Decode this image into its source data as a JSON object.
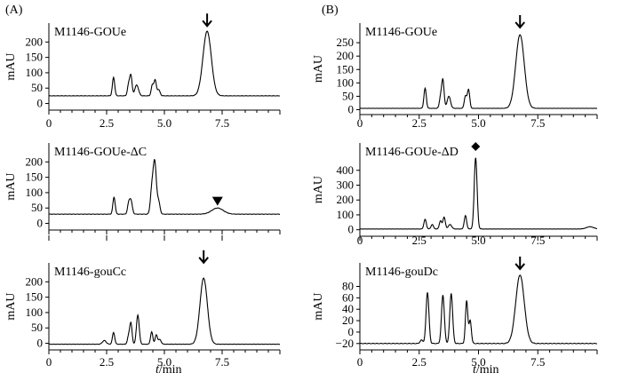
{
  "panel_labels": [
    "(A)",
    "(B)"
  ],
  "x_axis_title": "t/min",
  "chart_data": [
    {
      "type": "line",
      "panel": "A",
      "title": "M1146-GOUe",
      "ylabel": "mAU",
      "xlim": [
        0,
        10
      ],
      "ylim": [
        -10,
        250
      ],
      "ytick_values": [
        0,
        50,
        100,
        150,
        200
      ],
      "xticks": [
        "0",
        "2.5",
        "5.0",
        "7.5"
      ],
      "ytick_labels": [
        "0",
        "50",
        "100",
        "150",
        "200"
      ],
      "baseline": 25,
      "peaks": [
        [
          2.8,
          60,
          0.05
        ],
        [
          3.45,
          35,
          0.05
        ],
        [
          3.55,
          65,
          0.05
        ],
        [
          3.8,
          35,
          0.08
        ],
        [
          4.48,
          35,
          0.05
        ],
        [
          4.6,
          50,
          0.05
        ],
        [
          4.75,
          20,
          0.06
        ],
        [
          6.85,
          210,
          0.18
        ]
      ],
      "marker": {
        "type": "arrow",
        "x": 6.85,
        "y": 255
      }
    },
    {
      "type": "line",
      "panel": "A",
      "title": "M1146-GOUe-ΔC",
      "ylabel": "mAU",
      "xlim": [
        0,
        10
      ],
      "ylim": [
        -10,
        250
      ],
      "ytick_values": [
        0,
        50,
        100,
        150,
        200
      ],
      "xticks": [
        "0",
        "2.5",
        "5.0",
        "7.5"
      ],
      "ytick_labels": [
        "0",
        "50",
        "100",
        "150",
        "200"
      ],
      "baseline": 30,
      "peaks": [
        [
          2.82,
          55,
          0.05
        ],
        [
          3.45,
          30,
          0.05
        ],
        [
          3.55,
          45,
          0.06
        ],
        [
          4.45,
          70,
          0.06
        ],
        [
          4.58,
          170,
          0.07
        ],
        [
          4.75,
          40,
          0.06
        ],
        [
          7.3,
          20,
          0.25
        ]
      ],
      "marker": {
        "type": "triangle",
        "x": 7.3,
        "y": 72
      }
    },
    {
      "type": "line",
      "panel": "A",
      "title": "M1146-gouCc",
      "ylabel": "mAU",
      "xlim": [
        0,
        10
      ],
      "ylim": [
        -10,
        250
      ],
      "ytick_values": [
        0,
        50,
        100,
        150,
        200
      ],
      "xticks": [
        "0",
        "2.5",
        "5.0",
        "7.5"
      ],
      "ytick_labels": [
        "0",
        "50",
        "100",
        "150",
        "200"
      ],
      "baseline": -3,
      "peaks": [
        [
          2.4,
          12,
          0.08
        ],
        [
          2.8,
          38,
          0.05
        ],
        [
          3.45,
          25,
          0.05
        ],
        [
          3.55,
          68,
          0.05
        ],
        [
          3.85,
          95,
          0.06
        ],
        [
          4.45,
          40,
          0.05
        ],
        [
          4.65,
          30,
          0.05
        ],
        [
          4.8,
          15,
          0.06
        ],
        [
          6.7,
          215,
          0.16
        ]
      ],
      "marker": {
        "type": "arrow",
        "x": 6.7,
        "y": 265
      }
    },
    {
      "type": "line",
      "panel": "B",
      "title": "M1146-GOUe",
      "ylabel": "mAU",
      "xlim": [
        0,
        10
      ],
      "ylim": [
        -5,
        310
      ],
      "ytick_values": [
        0,
        50,
        100,
        150,
        200,
        250
      ],
      "xticks": [
        "0",
        "2.5",
        "5.0",
        "7.5"
      ],
      "ytick_labels": [
        "0",
        "50",
        "100",
        "150",
        "200",
        "250"
      ],
      "baseline": 5,
      "peaks": [
        [
          2.75,
          75,
          0.05
        ],
        [
          3.4,
          40,
          0.05
        ],
        [
          3.5,
          105,
          0.05
        ],
        [
          3.75,
          45,
          0.07
        ],
        [
          4.45,
          45,
          0.05
        ],
        [
          4.58,
          70,
          0.05
        ],
        [
          6.75,
          275,
          0.18
        ]
      ],
      "marker": {
        "type": "arrow",
        "x": 6.75,
        "y": 310
      }
    },
    {
      "type": "line",
      "panel": "B",
      "title": "M1146-GOUe-ΔD",
      "ylabel": "mAU",
      "xlim": [
        0,
        10
      ],
      "ylim": [
        -20,
        560
      ],
      "ytick_values": [
        0,
        100,
        200,
        300,
        400
      ],
      "xticks": [
        "0",
        "2.5",
        "5.0",
        "7.5"
      ],
      "ytick_labels": [
        "0",
        "100",
        "200",
        "300",
        "400"
      ],
      "baseline": 5,
      "peaks": [
        [
          2.75,
          65,
          0.05
        ],
        [
          3.05,
          30,
          0.05
        ],
        [
          3.4,
          55,
          0.05
        ],
        [
          3.55,
          80,
          0.05
        ],
        [
          3.8,
          30,
          0.07
        ],
        [
          4.45,
          90,
          0.05
        ],
        [
          4.88,
          480,
          0.06
        ],
        [
          9.7,
          15,
          0.15
        ]
      ],
      "marker": {
        "type": "diamond",
        "x": 4.88,
        "y": 560
      }
    },
    {
      "type": "line",
      "panel": "B",
      "title": "M1146-gouDc",
      "ylabel": "mAU",
      "xlim": [
        0,
        10
      ],
      "ylim": [
        -25,
        115
      ],
      "ytick_values": [
        -20,
        0,
        20,
        40,
        60,
        80
      ],
      "xticks": [
        "0",
        "2.5",
        "5.0",
        "7.5"
      ],
      "ytick_labels": [
        "−20",
        "0",
        "20",
        "40",
        "60",
        "80"
      ],
      "baseline": -20,
      "peaks": [
        [
          2.6,
          6,
          0.06
        ],
        [
          2.85,
          90,
          0.06
        ],
        [
          3.5,
          85,
          0.06
        ],
        [
          3.85,
          88,
          0.06
        ],
        [
          4.5,
          75,
          0.05
        ],
        [
          4.65,
          40,
          0.05
        ],
        [
          6.75,
          120,
          0.18
        ]
      ],
      "marker": {
        "type": "arrow",
        "x": 6.75,
        "y": 112
      }
    }
  ],
  "bottom_xtick_labels": [
    "0",
    "2.5",
    "5.0",
    "7.5"
  ]
}
